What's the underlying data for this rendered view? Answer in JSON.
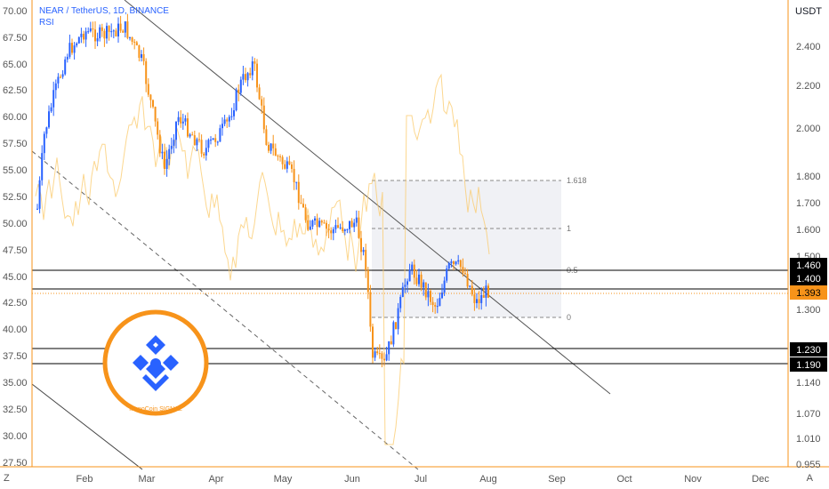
{
  "header": {
    "symbol_line": "NEAR / TetherUS, 1D, BINANCE",
    "indicator": "RSI",
    "currency": "USDT"
  },
  "footer": {
    "left_btn": "Z",
    "right_btn": "A"
  },
  "logo": {
    "text": "MonoCoin SIGNAL"
  },
  "colors": {
    "up": "#2962ff",
    "down": "#f7931a",
    "rsi": "#fbc96a",
    "accent": "#f7931a",
    "price_tag": "#f7931a",
    "line_tag": "#000000",
    "fib_fill": "#eceef2"
  },
  "chart_data": {
    "type": "candlestick",
    "x_axis": {
      "labels": [
        "Feb",
        "Mar",
        "Apr",
        "May",
        "Jun",
        "Jul",
        "Aug",
        "Sep",
        "Oct",
        "Nov",
        "Dec"
      ]
    },
    "left_axis": {
      "label": "RSI",
      "range": [
        27.5,
        70.0
      ],
      "ticks": [
        "70.00",
        "67.50",
        "65.00",
        "62.50",
        "60.00",
        "57.50",
        "55.00",
        "52.50",
        "50.00",
        "47.50",
        "45.00",
        "42.50",
        "40.00",
        "37.50",
        "35.00",
        "32.50",
        "30.00",
        "27.50"
      ]
    },
    "right_axis": {
      "label": "USDT",
      "scale": "log",
      "ticks": [
        "2.400",
        "2.200",
        "2.000",
        "1.800",
        "1.700",
        "1.600",
        "1.500",
        "1.300",
        "1.140",
        "1.070",
        "1.010",
        "0.955"
      ]
    },
    "current_price": "1.393",
    "horizontal_levels": [
      "1.460",
      "1.400",
      "1.230",
      "1.190"
    ],
    "fib_retracement": {
      "levels": [
        "1.618",
        "1",
        "0.5",
        "0"
      ]
    },
    "grid": false
  }
}
